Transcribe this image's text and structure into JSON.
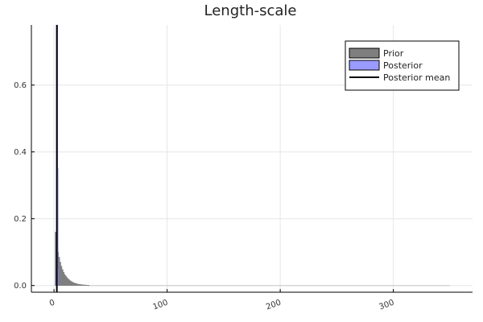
{
  "chart_data": {
    "type": "bar",
    "title": "Length-scale",
    "xlabel": "",
    "ylabel": "",
    "xlim": [
      -20,
      370
    ],
    "ylim": [
      -0.02,
      0.78
    ],
    "xticks": [
      0,
      100,
      200,
      300
    ],
    "yticks": [
      0.0,
      0.2,
      0.4,
      0.6
    ],
    "xtick_labels": [
      "0",
      "100",
      "200",
      "300"
    ],
    "ytick_labels": [
      "0.0",
      "0.2",
      "0.4",
      "0.6"
    ],
    "grid": true,
    "legend_position": "top-right",
    "series": [
      {
        "name": "Prior",
        "kind": "histogram",
        "color": "#7f7f7f",
        "bin_width": 1,
        "bins_start": 1,
        "values": [
          0.16,
          0.13,
          0.1,
          0.085,
          0.07,
          0.058,
          0.048,
          0.04,
          0.033,
          0.028,
          0.024,
          0.02,
          0.017,
          0.014,
          0.012,
          0.01,
          0.008,
          0.007,
          0.006,
          0.005,
          0.004,
          0.0035,
          0.003,
          0.0025,
          0.002,
          0.0018,
          0.0015,
          0.0012,
          0.001,
          0.0008
        ],
        "tail_end": 350
      },
      {
        "name": "Posterior",
        "kind": "histogram",
        "color": "#9a9aff",
        "bin_width": 0.25,
        "bins_start": 2.0,
        "values": [
          0.05,
          0.3,
          0.78,
          0.35,
          0.05
        ]
      },
      {
        "name": "Posterior mean",
        "kind": "vline",
        "color": "#000000",
        "x": 2.5
      }
    ]
  }
}
